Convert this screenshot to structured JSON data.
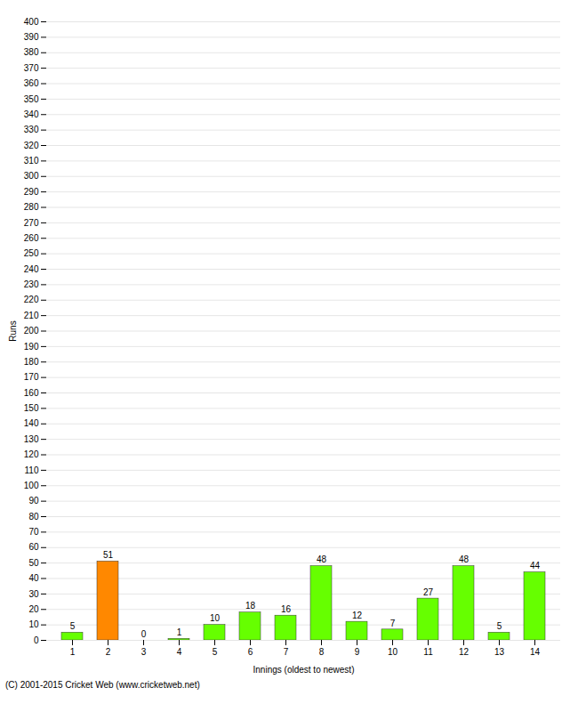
{
  "chart_data": {
    "type": "bar",
    "categories": [
      "1",
      "2",
      "3",
      "4",
      "5",
      "6",
      "7",
      "8",
      "9",
      "10",
      "11",
      "12",
      "13",
      "14"
    ],
    "values": [
      5,
      51,
      0,
      1,
      10,
      18,
      16,
      48,
      12,
      7,
      27,
      48,
      5,
      44
    ],
    "colors": [
      "#66ff00",
      "#ff8800",
      "#66ff00",
      "#66ff00",
      "#66ff00",
      "#66ff00",
      "#66ff00",
      "#66ff00",
      "#66ff00",
      "#66ff00",
      "#66ff00",
      "#66ff00",
      "#66ff00",
      "#66ff00"
    ],
    "xlabel": "Innings (oldest to newest)",
    "ylabel": "Runs",
    "ylim": [
      0,
      400
    ],
    "yticks": [
      0,
      10,
      20,
      30,
      40,
      50,
      60,
      70,
      80,
      90,
      100,
      110,
      120,
      130,
      140,
      150,
      160,
      170,
      180,
      190,
      200,
      210,
      220,
      230,
      240,
      250,
      260,
      270,
      280,
      290,
      300,
      310,
      320,
      330,
      340,
      350,
      360,
      370,
      380,
      390,
      400
    ],
    "grid": true,
    "data_labels": true,
    "caption": "(C) 2001-2015 Cricket Web (www.cricketweb.net)"
  }
}
